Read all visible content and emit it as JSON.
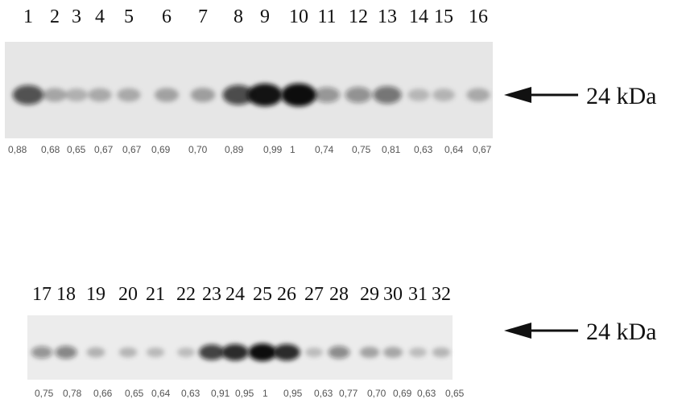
{
  "panels": [
    {
      "lane_labels": [
        "1",
        "2",
        "3",
        "4",
        "5",
        "6",
        "7",
        "8",
        "9",
        "10",
        "11",
        "12",
        "13",
        "14",
        "15",
        "16"
      ],
      "values": [
        "0,88",
        "0,68",
        "0,65",
        "0,67",
        "0,67",
        "0,69",
        "0,70",
        "0,89",
        "0,99",
        "1",
        "0,74",
        "0,75",
        "0,81",
        "0,63",
        "0,64",
        "0,67"
      ],
      "band_intensity": [
        0.88,
        0.68,
        0.65,
        0.67,
        0.67,
        0.69,
        0.7,
        0.89,
        0.99,
        1.0,
        0.74,
        0.75,
        0.81,
        0.63,
        0.64,
        0.67
      ],
      "marker_label": "24 kDa"
    },
    {
      "lane_labels": [
        "17",
        "18",
        "19",
        "20",
        "21",
        "22",
        "23",
        "24",
        "25",
        "26",
        "27",
        "28",
        "29",
        "30",
        "31",
        "32"
      ],
      "values": [
        "0,75",
        "0,78",
        "0,66",
        "0,65",
        "0,64",
        "0,63",
        "0,91",
        "0,95",
        "1",
        "0,95",
        "0,63",
        "0,77",
        "0,70",
        "0,69",
        "0,63",
        "0,65"
      ],
      "band_intensity": [
        0.75,
        0.78,
        0.66,
        0.65,
        0.64,
        0.63,
        0.91,
        0.95,
        1.0,
        0.95,
        0.63,
        0.77,
        0.7,
        0.69,
        0.63,
        0.65
      ],
      "marker_label": "24 kDa"
    }
  ],
  "colors": {
    "blot_background": "#e8e8e8",
    "band": "#111111",
    "text": "#111111",
    "value_text": "#555555"
  }
}
